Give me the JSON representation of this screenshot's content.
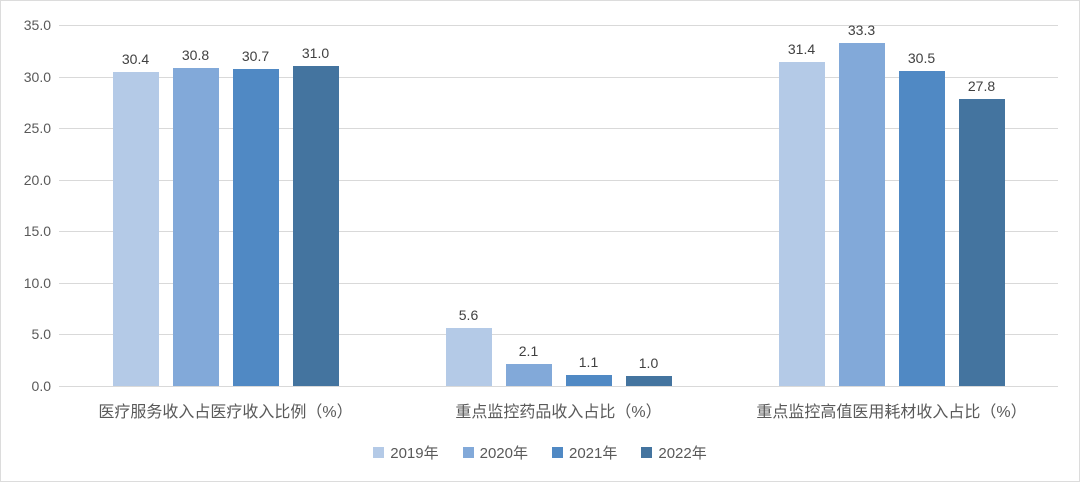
{
  "chart_data": {
    "type": "bar",
    "title": "",
    "categories": [
      "医疗服务收入占医疗收入比例（%）",
      "重点监控药品收入占比（%）",
      "重点监控高值医用耗材收入占比（%）"
    ],
    "series": [
      {
        "name": "2019年",
        "color": "#b4cae7",
        "values": [
          30.4,
          5.6,
          31.4
        ]
      },
      {
        "name": "2020年",
        "color": "#82a9d9",
        "values": [
          30.8,
          2.1,
          33.3
        ]
      },
      {
        "name": "2021年",
        "color": "#5089c4",
        "values": [
          30.7,
          1.1,
          30.5
        ]
      },
      {
        "name": "2022年",
        "color": "#44749f",
        "values": [
          31.0,
          1.0,
          27.8
        ]
      }
    ],
    "ylim": [
      0,
      35
    ],
    "ytick_step": 5,
    "yticks": [
      "35.0",
      "30.0",
      "25.0",
      "20.0",
      "15.0",
      "10.0",
      "5.0",
      "0.0"
    ],
    "grid": true,
    "value_labels_shown": true,
    "value_label_decimals": 1,
    "legend_position": "bottom"
  },
  "colors": {
    "background": "#ffffff",
    "frame_border": "#dcdcdc",
    "gridline": "#d9d9d9",
    "axis_tick_text": "#595959",
    "value_label_text": "#404040",
    "category_label_text": "#595959",
    "legend_text": "#595959"
  }
}
